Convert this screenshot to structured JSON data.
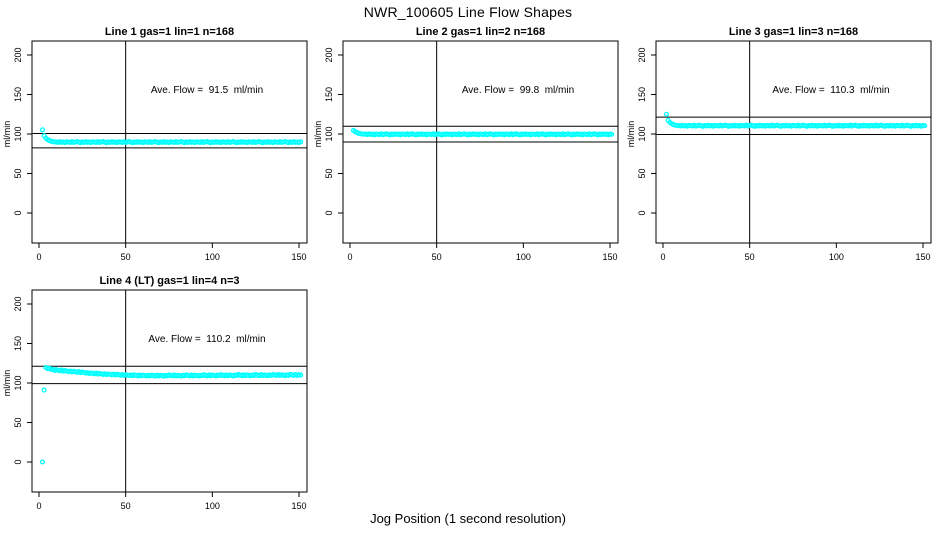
{
  "figure": {
    "title": "NWR_100605  Line Flow Shapes",
    "xlabel": "Jog Position (1 second resolution)",
    "background_color": "#ffffff",
    "text_color": "#000000"
  },
  "chart_data": {
    "type": "scatter",
    "point_color": "#00ffff",
    "line_color": "#000000",
    "ylabel": "ml/min",
    "x_ticks": [
      0,
      50,
      100,
      150
    ],
    "y_ticks": [
      0,
      50,
      100,
      150,
      200
    ],
    "xlim": [
      0,
      150
    ],
    "ylim": [
      0,
      200
    ],
    "grid": false,
    "vline_x": 50,
    "panels": [
      {
        "title": "Line 1 gas=1 lin=1 n=168",
        "ave_flow": 91.5,
        "ave_flow_label": "Ave. Flow =  91.5  ml/min",
        "hline_upper": 100.7,
        "hline_lower": 82.4,
        "x_start": 2,
        "x_step": 1,
        "y": [
          105.3,
          97.9,
          94.6,
          92.8,
          91.6,
          90.8,
          90.2,
          89.9,
          90.0,
          89.3,
          90.2,
          89.5,
          89.8,
          89.1,
          90.1,
          89.7,
          89.4,
          90.3,
          89.2,
          89.9,
          90.4,
          89.6,
          89.0,
          90.0,
          89.3,
          90.2,
          89.5,
          89.8,
          89.1,
          90.1,
          89.7,
          89.4,
          90.3,
          89.2,
          89.9,
          90.4,
          89.6,
          89.0,
          90.0,
          89.3,
          90.2,
          89.5,
          89.8,
          89.1,
          90.1,
          89.7,
          89.4,
          90.3,
          89.2,
          89.9,
          90.4,
          89.6,
          89.0,
          90.0,
          89.3,
          90.2,
          89.5,
          89.8,
          89.1,
          90.1,
          89.7,
          89.4,
          90.3,
          89.2,
          89.9,
          90.4,
          89.6,
          89.0,
          90.0,
          89.3,
          90.2,
          89.5,
          89.8,
          89.1,
          90.1,
          89.7,
          89.4,
          90.3,
          89.2,
          89.9,
          90.4,
          89.6,
          89.0,
          90.0,
          89.3,
          90.2,
          89.5,
          89.8,
          89.1,
          90.1,
          89.7,
          89.4,
          90.3,
          89.2,
          89.9,
          90.4,
          89.6,
          89.0,
          90.0,
          89.3,
          90.2,
          89.5,
          89.8,
          89.1,
          90.1,
          89.7,
          89.4,
          90.3,
          89.2,
          89.9,
          90.4,
          89.6,
          89.0,
          90.0,
          89.3,
          90.2,
          89.5,
          89.8,
          89.1,
          90.1,
          89.7,
          89.4,
          90.3,
          89.2,
          89.9,
          90.4,
          89.6,
          89.0,
          90.0,
          89.3,
          90.2,
          89.5,
          89.8,
          89.1,
          90.1,
          89.7,
          89.4,
          90.3,
          89.2,
          89.9,
          90.4,
          89.6,
          89.0,
          90.0,
          89.3,
          90.2,
          89.5,
          89.8,
          89.1,
          90.1
        ]
      },
      {
        "title": "Line 2 gas=1 lin=2 n=168",
        "ave_flow": 99.8,
        "ave_flow_label": "Ave. Flow =  99.8  ml/min",
        "hline_upper": 109.8,
        "hline_lower": 89.8,
        "x_start": 2,
        "x_step": 1,
        "y": [
          104.5,
          103.0,
          101.8,
          100.9,
          100.4,
          100.0,
          99.8,
          99.9,
          99.2,
          100.1,
          99.4,
          99.7,
          99.0,
          100.0,
          99.6,
          99.3,
          100.2,
          99.1,
          99.8,
          100.3,
          99.5,
          98.9,
          99.9,
          99.2,
          100.1,
          99.4,
          99.7,
          99.0,
          100.0,
          99.6,
          99.3,
          100.2,
          99.1,
          99.8,
          100.3,
          99.5,
          98.9,
          99.9,
          99.2,
          100.1,
          99.4,
          99.7,
          99.0,
          100.0,
          99.6,
          99.3,
          100.2,
          99.1,
          99.8,
          100.3,
          99.5,
          98.9,
          99.9,
          99.2,
          100.1,
          99.4,
          99.7,
          99.0,
          100.0,
          99.6,
          99.3,
          100.2,
          99.1,
          99.8,
          100.3,
          99.5,
          98.9,
          99.9,
          99.2,
          100.1,
          99.4,
          99.7,
          99.0,
          100.0,
          99.6,
          99.3,
          100.2,
          99.1,
          99.8,
          100.3,
          99.5,
          98.9,
          99.9,
          99.2,
          100.1,
          99.4,
          99.7,
          99.0,
          100.0,
          99.6,
          99.3,
          100.2,
          99.1,
          99.8,
          100.3,
          99.5,
          98.9,
          99.9,
          99.2,
          100.1,
          99.4,
          99.7,
          99.0,
          100.0,
          99.6,
          99.3,
          100.2,
          99.1,
          99.8,
          100.3,
          99.5,
          98.9,
          99.9,
          99.2,
          100.1,
          99.4,
          99.7,
          99.0,
          100.0,
          99.6,
          99.3,
          100.2,
          99.1,
          99.8,
          100.3,
          99.5,
          98.9,
          99.9,
          99.2,
          100.1,
          99.4,
          99.7,
          99.0,
          100.0,
          99.6,
          99.3,
          100.2,
          99.1,
          99.8,
          100.3,
          99.5,
          98.9,
          99.9,
          99.2,
          100.1,
          99.4,
          99.7,
          99.0,
          100.0,
          99.6
        ]
      },
      {
        "title": "Line 3 gas=1 lin=3 n=168",
        "ave_flow": 110.3,
        "ave_flow_label": "Ave. Flow =  110.3  ml/min",
        "hline_upper": 121.3,
        "hline_lower": 99.3,
        "x_start": 2,
        "x_step": 1,
        "y": [
          125.0,
          117.2,
          114.6,
          112.9,
          111.8,
          111.2,
          110.8,
          110.8,
          110.1,
          111.0,
          110.3,
          110.6,
          109.9,
          110.9,
          110.5,
          110.2,
          111.1,
          110.0,
          110.7,
          111.2,
          110.4,
          109.8,
          110.8,
          110.1,
          111.0,
          110.3,
          110.6,
          109.9,
          110.9,
          110.5,
          110.2,
          111.1,
          110.0,
          110.7,
          111.2,
          110.4,
          109.8,
          110.8,
          110.1,
          111.0,
          110.3,
          110.6,
          109.9,
          110.9,
          110.5,
          110.2,
          111.1,
          110.0,
          110.7,
          111.2,
          110.4,
          109.8,
          110.8,
          110.1,
          111.0,
          110.3,
          110.6,
          109.9,
          110.9,
          110.5,
          110.2,
          111.1,
          110.0,
          110.7,
          111.2,
          110.4,
          109.8,
          110.8,
          110.1,
          111.0,
          110.3,
          110.6,
          109.9,
          110.9,
          110.5,
          110.2,
          111.1,
          110.0,
          110.7,
          111.2,
          110.4,
          109.8,
          110.8,
          110.1,
          111.0,
          110.3,
          110.6,
          109.9,
          110.9,
          110.5,
          110.2,
          111.1,
          110.0,
          110.7,
          111.2,
          110.4,
          109.8,
          110.8,
          110.1,
          111.0,
          110.3,
          110.6,
          109.9,
          110.9,
          110.5,
          110.2,
          111.1,
          110.0,
          110.7,
          111.2,
          110.4,
          109.8,
          110.8,
          110.1,
          111.0,
          110.3,
          110.6,
          109.9,
          110.9,
          110.5,
          110.2,
          111.1,
          110.0,
          110.7,
          111.2,
          110.4,
          109.8,
          110.8,
          110.1,
          111.0,
          110.3,
          110.6,
          109.9,
          110.9,
          110.5,
          110.2,
          111.1,
          110.0,
          110.7,
          111.2,
          110.4,
          109.8,
          110.8,
          110.1,
          111.0,
          110.3,
          110.6,
          109.9,
          110.9,
          110.5
        ]
      },
      {
        "title": "Line 4 (LT) gas=1 lin=4 n=3",
        "ave_flow": 110.2,
        "ave_flow_label": "Ave. Flow =  110.2  ml/min",
        "hline_upper": 121.2,
        "hline_lower": 99.2,
        "x_start": 2,
        "x_step": 1,
        "y": [
          0.0,
          91.0,
          119.5,
          118.2,
          118.6,
          117.1,
          117.4,
          115.9,
          116.8,
          116.1,
          115.5,
          116.4,
          114.9,
          115.8,
          115.1,
          114.4,
          115.2,
          113.9,
          114.8,
          114.2,
          113.6,
          114.5,
          113.0,
          113.8,
          113.2,
          112.5,
          113.1,
          111.9,
          112.8,
          112.2,
          111.7,
          112.6,
          111.3,
          112.1,
          111.6,
          110.9,
          111.7,
          110.6,
          111.4,
          110.8,
          110.4,
          111.2,
          110.1,
          111.0,
          110.5,
          109.8,
          110.6,
          109.5,
          110.4,
          109.9,
          109.4,
          110.3,
          109.3,
          110.2,
          109.7,
          109.0,
          110.0,
          108.9,
          109.9,
          109.5,
          108.8,
          109.8,
          109.0,
          110.1,
          109.4,
          108.7,
          109.9,
          108.8,
          109.7,
          109.2,
          108.6,
          109.6,
          109.1,
          110.2,
          109.5,
          108.8,
          110.0,
          108.9,
          109.8,
          109.3,
          108.7,
          109.7,
          109.2,
          110.3,
          109.6,
          108.9,
          110.1,
          109.0,
          109.9,
          109.4,
          108.8,
          109.8,
          109.3,
          110.4,
          109.7,
          109.0,
          110.2,
          109.1,
          110.0,
          109.5,
          108.9,
          109.9,
          109.4,
          110.5,
          109.8,
          109.1,
          110.3,
          109.2,
          110.1,
          109.6,
          109.0,
          110.0,
          109.5,
          110.6,
          109.9,
          109.2,
          110.4,
          109.3,
          110.2,
          109.7,
          109.1,
          110.1,
          109.6,
          110.7,
          110.0,
          109.3,
          110.5,
          109.4,
          110.3,
          109.8,
          109.2,
          110.2,
          109.7,
          110.8,
          110.1,
          109.4,
          110.6,
          109.5,
          110.4,
          109.9,
          109.3,
          110.3,
          109.8,
          110.9,
          110.2,
          109.5,
          110.7,
          109.6,
          110.5,
          110.0
        ]
      }
    ]
  }
}
